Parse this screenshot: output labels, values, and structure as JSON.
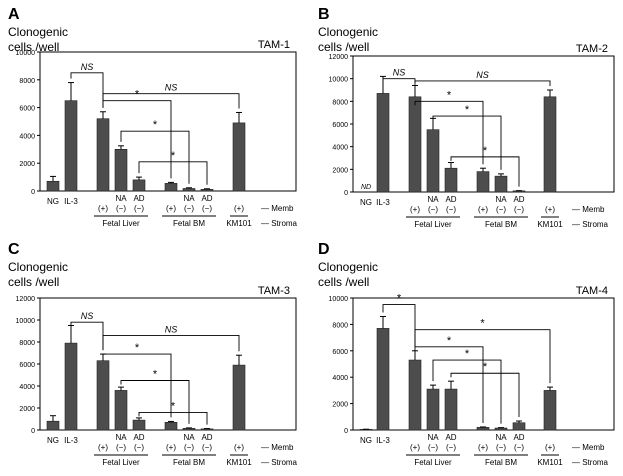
{
  "chart_data": [
    {
      "type": "bar",
      "panel": "A",
      "ylabel_line1": "Clonogenic",
      "ylabel_line2": "cells /well",
      "title": "TAM-1",
      "yticks": [
        0,
        2000,
        4000,
        6000,
        8000,
        10000
      ],
      "ylim": [
        0,
        10000
      ],
      "bars": [
        {
          "value": 700,
          "err": 350
        },
        {
          "value": 6500,
          "err": 1300
        },
        {
          "value": 5200,
          "err": 500
        },
        {
          "value": 3000,
          "err": 250
        },
        {
          "value": 800,
          "err": 200
        },
        {
          "value": 550,
          "err": 70
        },
        {
          "value": 180,
          "err": 50
        },
        {
          "value": 120,
          "err": 40
        },
        {
          "value": 4900,
          "err": 750
        }
      ],
      "nd_label": "",
      "brackets": [
        {
          "from": 1,
          "to": 2,
          "label": "NS",
          "level": 8500
        },
        {
          "from": 2,
          "to": 8,
          "label": "NS",
          "level": 7000
        },
        {
          "from": 2,
          "to": 5,
          "label": "*",
          "level": 6500
        },
        {
          "from": 3,
          "to": 6,
          "label": "*",
          "level": 4300
        },
        {
          "from": 4,
          "to": 7,
          "label": "*",
          "level": 2100
        }
      ]
    },
    {
      "type": "bar",
      "panel": "B",
      "ylabel_line1": "Clonogenic",
      "ylabel_line2": "cells /well",
      "title": "TAM-2",
      "yticks": [
        0,
        2000,
        4000,
        6000,
        8000,
        10000,
        12000
      ],
      "ylim": [
        0,
        12000
      ],
      "bars": [
        {
          "value": 0,
          "err": 0
        },
        {
          "value": 8700,
          "err": 1500
        },
        {
          "value": 8400,
          "err": 1000
        },
        {
          "value": 5500,
          "err": 1000
        },
        {
          "value": 2100,
          "err": 500
        },
        {
          "value": 1800,
          "err": 300
        },
        {
          "value": 1400,
          "err": 200
        },
        {
          "value": 100,
          "err": 20
        },
        {
          "value": 8400,
          "err": 600
        }
      ],
      "nd_label": "ND",
      "brackets": [
        {
          "from": 1,
          "to": 2,
          "label": "NS",
          "level": 10000
        },
        {
          "from": 2,
          "to": 8,
          "label": "NS",
          "level": 9800
        },
        {
          "from": 2,
          "to": 5,
          "label": "*",
          "level": 8000
        },
        {
          "from": 3,
          "to": 6,
          "label": "*",
          "level": 6700
        },
        {
          "from": 4,
          "to": 7,
          "label": "*",
          "level": 3100
        }
      ]
    },
    {
      "type": "bar",
      "panel": "C",
      "ylabel_line1": "Clonogenic",
      "ylabel_line2": "cells /well",
      "title": "TAM-3",
      "yticks": [
        0,
        2000,
        4000,
        6000,
        8000,
        10000,
        12000
      ],
      "ylim": [
        0,
        12000
      ],
      "bars": [
        {
          "value": 800,
          "err": 500
        },
        {
          "value": 7900,
          "err": 1600
        },
        {
          "value": 6300,
          "err": 600
        },
        {
          "value": 3600,
          "err": 300
        },
        {
          "value": 900,
          "err": 200
        },
        {
          "value": 700,
          "err": 80
        },
        {
          "value": 150,
          "err": 40
        },
        {
          "value": 100,
          "err": 30
        },
        {
          "value": 5900,
          "err": 900
        }
      ],
      "nd_label": "",
      "brackets": [
        {
          "from": 1,
          "to": 2,
          "label": "NS",
          "level": 9800
        },
        {
          "from": 2,
          "to": 8,
          "label": "NS",
          "level": 8600
        },
        {
          "from": 2,
          "to": 5,
          "label": "*",
          "level": 6900
        },
        {
          "from": 3,
          "to": 6,
          "label": "*",
          "level": 4500
        },
        {
          "from": 4,
          "to": 7,
          "label": "*",
          "level": 1600
        }
      ]
    },
    {
      "type": "bar",
      "panel": "D",
      "ylabel_line1": "Clonogenic",
      "ylabel_line2": "cells /well",
      "title": "TAM-4",
      "yticks": [
        0,
        2000,
        4000,
        6000,
        8000,
        10000
      ],
      "ylim": [
        0,
        10000
      ],
      "bars": [
        {
          "value": 50,
          "err": 10
        },
        {
          "value": 7700,
          "err": 900
        },
        {
          "value": 5300,
          "err": 700
        },
        {
          "value": 3100,
          "err": 300
        },
        {
          "value": 3100,
          "err": 600
        },
        {
          "value": 200,
          "err": 30
        },
        {
          "value": 150,
          "err": 30
        },
        {
          "value": 550,
          "err": 130
        },
        {
          "value": 3000,
          "err": 250
        }
      ],
      "nd_label": "",
      "brackets": [
        {
          "from": 1,
          "to": 2,
          "label": "*",
          "level": 9500
        },
        {
          "from": 2,
          "to": 8,
          "label": "*",
          "level": 7600
        },
        {
          "from": 2,
          "to": 5,
          "label": "*",
          "level": 6300
        },
        {
          "from": 3,
          "to": 6,
          "label": "*",
          "level": 5300
        },
        {
          "from": 4,
          "to": 7,
          "label": "*",
          "level": 4300
        }
      ]
    }
  ],
  "axis_labels": {
    "ng": "NG",
    "il3": "IL-3",
    "plus": "(+)",
    "na": "NA",
    "ad": "AD",
    "minus": "(−)",
    "fetal_liver": "Fetal Liver",
    "fetal_bm": "Fetal BM",
    "km101": "KM101",
    "memb": "— Memb",
    "stroma": "— Stroma"
  },
  "colors": {
    "bar": "#4d4d4d",
    "axis": "#000000"
  }
}
